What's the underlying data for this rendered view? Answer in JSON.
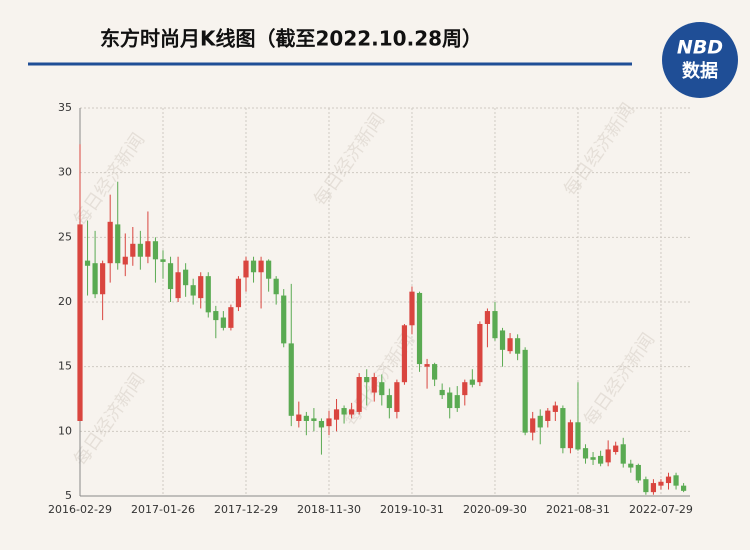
{
  "chart_data": {
    "type": "candlestick",
    "title": "东方时尚月K线图（截至2022.10.28周）",
    "logo": {
      "top": "NBD",
      "bottom": "数据"
    },
    "watermark": "每日经济新闻",
    "categories": [
      "2016-02-29",
      null,
      null,
      null,
      null,
      null,
      null,
      null,
      null,
      null,
      null,
      "2017-01-26",
      null,
      null,
      null,
      null,
      null,
      null,
      null,
      null,
      null,
      null,
      "2017-12-29",
      null,
      null,
      null,
      null,
      null,
      null,
      null,
      null,
      null,
      null,
      "2018-11-30",
      null,
      null,
      null,
      null,
      null,
      null,
      null,
      null,
      null,
      null,
      "2019-10-31",
      null,
      null,
      null,
      null,
      null,
      null,
      null,
      null,
      null,
      null,
      "2020-09-30",
      null,
      null,
      null,
      null,
      null,
      null,
      null,
      null,
      null,
      null,
      "2021-08-31",
      null,
      null,
      null,
      null,
      null,
      null,
      null,
      null,
      null,
      null,
      "2022-07-29",
      null,
      null,
      null
    ],
    "open": [
      10.8,
      23.2,
      23,
      20.6,
      23,
      26,
      22.9,
      23.5,
      24.5,
      23.5,
      24.7,
      23.3,
      23,
      20.3,
      22.5,
      21.3,
      20.3,
      22,
      19.3,
      18.8,
      18,
      19.6,
      21.9,
      23.2,
      22.3,
      23.2,
      21.8,
      20.5,
      16.8,
      10.8,
      11.2,
      11,
      10.8,
      10.4,
      10.9,
      11.8,
      11.3,
      11.5,
      14.2,
      13,
      13.8,
      12.8,
      11.5,
      13.8,
      18.2,
      20.7,
      15,
      15.2,
      13.2,
      13,
      12.8,
      12.8,
      14,
      13.8,
      18.3,
      19.3,
      17.8,
      16.2,
      17.2,
      16.3,
      9.9,
      11.2,
      10.8,
      11.5,
      11.8,
      8.7,
      10.7,
      8.7,
      8,
      8.1,
      7.6,
      8.4,
      9,
      7.5,
      7.4,
      6.3,
      5.3,
      5.8,
      6,
      6.6,
      5.8
    ],
    "high": [
      32.2,
      26.3,
      25.5,
      23.2,
      28.3,
      29.3,
      25.3,
      25.8,
      25.5,
      27,
      25,
      24,
      23.5,
      23.5,
      23,
      21.8,
      22.3,
      22.3,
      19.7,
      19.3,
      19.8,
      22,
      23.5,
      23.5,
      23.5,
      23.3,
      22,
      21,
      21.4,
      12.3,
      11.5,
      11.8,
      11,
      11.6,
      12.5,
      12,
      12.2,
      14.5,
      14.8,
      14.5,
      14.4,
      13.3,
      14,
      18.3,
      21.2,
      20.8,
      15.6,
      15.3,
      13.7,
      13.4,
      13.5,
      14,
      14.8,
      18.5,
      19.5,
      20,
      18,
      17.6,
      17.5,
      16.5,
      11.5,
      11.7,
      11.8,
      12.3,
      12,
      10.9,
      13.8,
      9,
      8.4,
      8.5,
      9.3,
      9.2,
      9.5,
      7.8,
      7.5,
      6.5,
      6.3,
      6.3,
      6.8,
      6.8,
      6
    ],
    "low": [
      10.8,
      20.5,
      20.3,
      18.6,
      21.5,
      22.5,
      22,
      22.8,
      22.5,
      23,
      21.5,
      21.8,
      20,
      20,
      20.4,
      19.8,
      19.5,
      18.8,
      17.2,
      17.8,
      17.8,
      19.3,
      20.8,
      21.5,
      19.5,
      20.8,
      19.8,
      16.5,
      10.4,
      10.3,
      9.7,
      10,
      8.2,
      9.7,
      10,
      10.6,
      11,
      11.3,
      12,
      12.3,
      12,
      11,
      11,
      13.6,
      17.5,
      14.6,
      13.3,
      13.5,
      12.5,
      11,
      11.5,
      12,
      13.4,
      13.5,
      16.5,
      17,
      15,
      16,
      15.5,
      9.7,
      9.3,
      9,
      10.3,
      10.8,
      8.3,
      8.3,
      8.5,
      7.5,
      7.4,
      7.3,
      7.3,
      8.2,
      7.2,
      6.8,
      6,
      5.1,
      5.1,
      5.5,
      5.5,
      5.5,
      5.3
    ],
    "close": [
      26,
      22.8,
      20.6,
      23,
      26.2,
      23,
      23.5,
      24.5,
      23.5,
      24.7,
      23.3,
      23.1,
      21,
      22.3,
      21.3,
      20.5,
      22,
      19.2,
      18.6,
      18,
      19.6,
      21.8,
      23.2,
      22.3,
      23.2,
      21.8,
      20.6,
      16.8,
      11.2,
      11.3,
      10.8,
      10.8,
      10.3,
      11,
      11.7,
      11.3,
      11.7,
      14.2,
      13.8,
      14.2,
      12.8,
      11.8,
      13.8,
      18.2,
      20.8,
      15.2,
      15.2,
      14,
      12.8,
      11.8,
      11.8,
      13.8,
      13.6,
      18.3,
      19.3,
      17.2,
      16.3,
      17.2,
      16,
      9.9,
      11,
      10.3,
      11.6,
      12,
      8.7,
      10.7,
      8.6,
      7.9,
      7.8,
      7.5,
      8.6,
      8.9,
      7.5,
      7.2,
      6.2,
      5.3,
      6,
      6.1,
      6.5,
      5.8,
      5.4
    ],
    "up_color": "#d9453f",
    "down_color": "#5aaa52",
    "ylim": [
      5,
      35
    ],
    "yticks": [
      5,
      10,
      15,
      20,
      25,
      30,
      35
    ],
    "grid": true
  }
}
